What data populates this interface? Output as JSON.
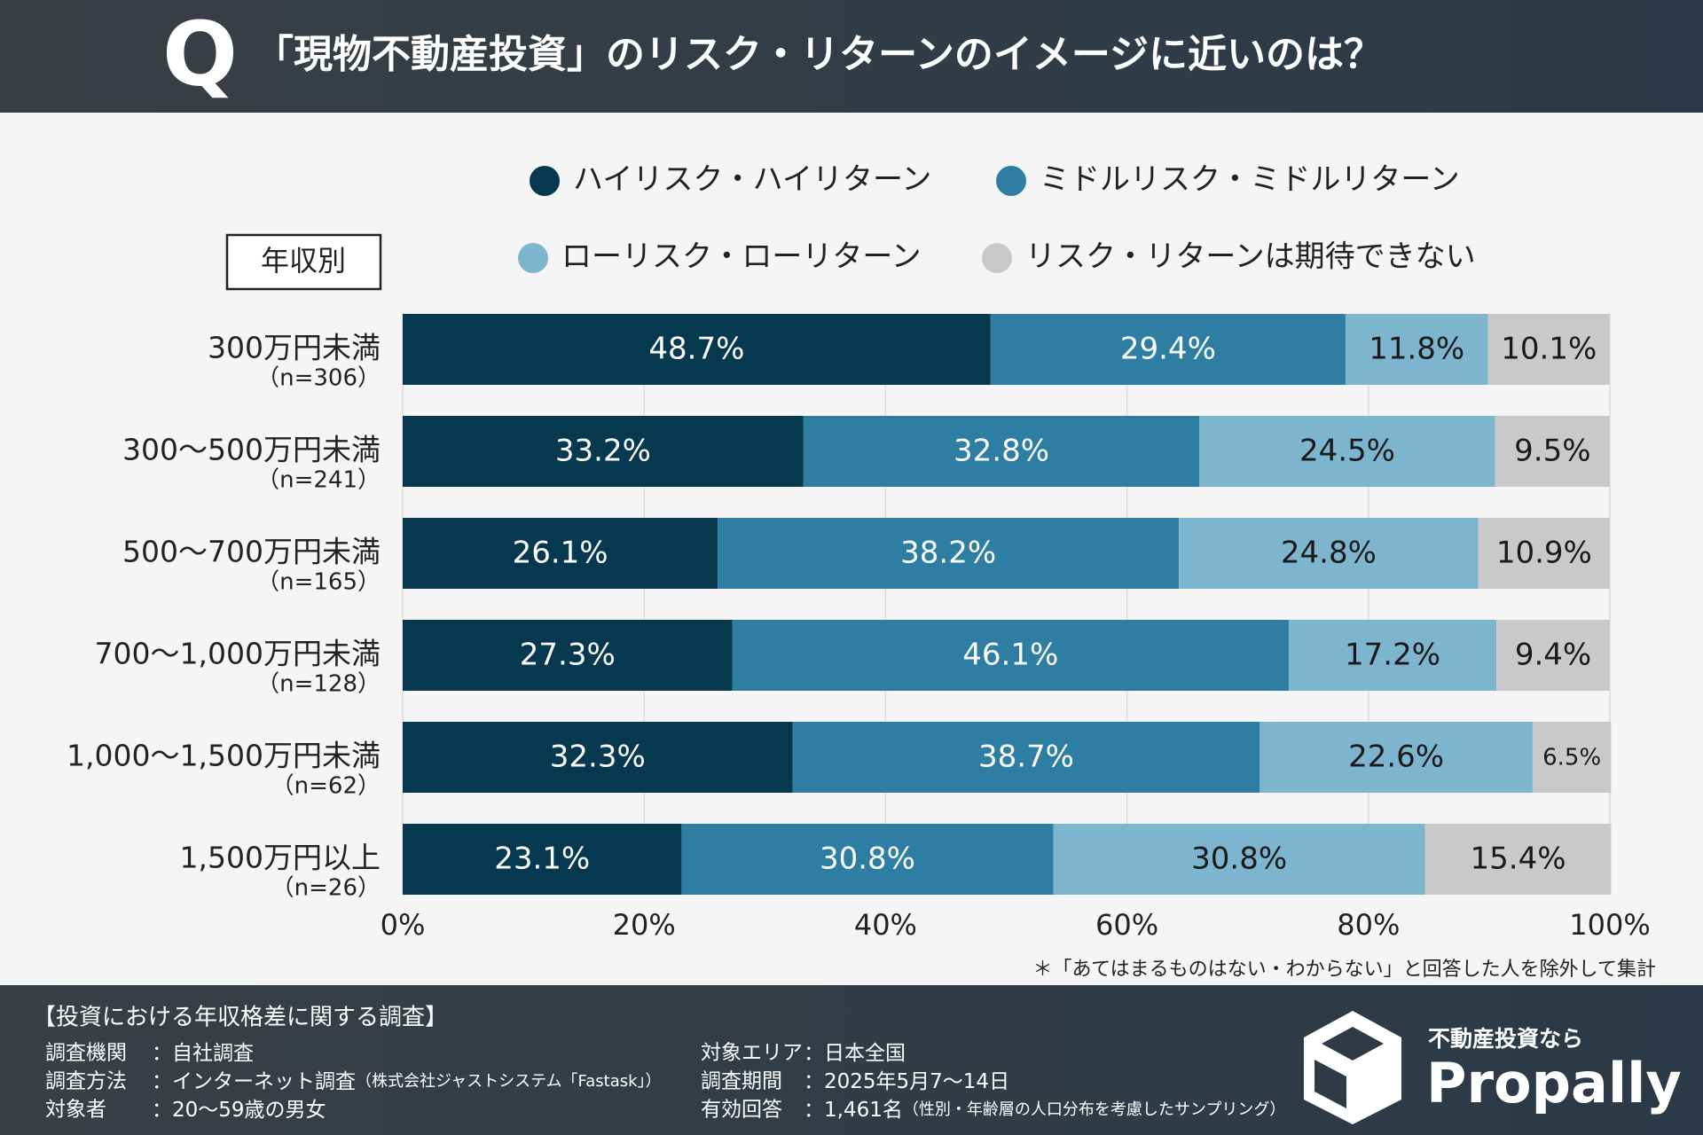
{
  "header": {
    "q": "Q",
    "title": "「現物不動産投資」のリスク・リターンのイメージに近いのは？"
  },
  "chart_data": {
    "type": "stacked-barh",
    "group_label": "年収別",
    "categories": [
      "300万円未満",
      "300〜500万円未満",
      "500〜700万円未満",
      "700〜1,000万円未満",
      "1,000〜1,500万円未満",
      "1,500万円以上"
    ],
    "sample_sizes": [
      "（n=306）",
      "（n=241）",
      "（n=165）",
      "（n=128）",
      "（n=62）",
      "（n=26）"
    ],
    "series": [
      {
        "name": "ハイリスク・ハイリターン",
        "color": "#06394f",
        "values": [
          48.7,
          33.2,
          26.1,
          27.3,
          32.3,
          23.1
        ],
        "value_labels": [
          "48.7%",
          "33.2%",
          "26.1%",
          "27.3%",
          "32.3%",
          "23.1%"
        ]
      },
      {
        "name": "ミドルリスク・ミドルリターン",
        "color": "#2d7ea2",
        "values": [
          29.4,
          32.8,
          38.2,
          46.1,
          38.7,
          30.8
        ],
        "value_labels": [
          "29.4%",
          "32.8%",
          "38.2%",
          "46.1%",
          "38.7%",
          "30.8%"
        ]
      },
      {
        "name": "ローリスク・ローリターン",
        "color": "#7db5cf",
        "values": [
          11.8,
          24.5,
          24.8,
          17.2,
          22.6,
          30.8
        ],
        "value_labels": [
          "11.8%",
          "24.5%",
          "24.8%",
          "17.2%",
          "22.6%",
          "30.8%"
        ]
      },
      {
        "name": "リスク・リターンは期待できない",
        "color": "#c9c9c9",
        "values": [
          10.1,
          9.5,
          10.9,
          9.4,
          6.5,
          15.4
        ],
        "value_labels": [
          "10.1%",
          "9.5%",
          "10.9%",
          "9.4%",
          "6.5%",
          "15.4%"
        ]
      }
    ],
    "xlim": [
      0,
      100
    ],
    "xticks": [
      {
        "value": 0,
        "label": "0%"
      },
      {
        "value": 20,
        "label": "20%"
      },
      {
        "value": 40,
        "label": "40%"
      },
      {
        "value": 60,
        "label": "60%"
      },
      {
        "value": 80,
        "label": "80%"
      },
      {
        "value": 100,
        "label": "100%"
      }
    ],
    "grid": true,
    "footnote": "＊「あてはまるものはない・わからない」と回答した人を除外して集計"
  },
  "footer": {
    "title": "【投資における年収格差に関する調査】",
    "items": [
      {
        "label": "調査機関",
        "value": "：自社調査"
      },
      {
        "label": "調査方法",
        "value": "：インターネット調査",
        "note": "（株式会社ジャストシステム「Fastask」）"
      },
      {
        "label": "対象者",
        "value": "：20〜59歳の男女"
      },
      {
        "label": "対象エリア",
        "value": "：日本全国"
      },
      {
        "label": "調査期間",
        "value": "：2025年5月7〜14日"
      },
      {
        "label": "有効回答",
        "value": "：1,461名",
        "note": "（性別・年齢層の人口分布を考慮したサンプリング）"
      }
    ],
    "logo_tagline": "不動産投資なら",
    "logo_name": "Propally"
  }
}
